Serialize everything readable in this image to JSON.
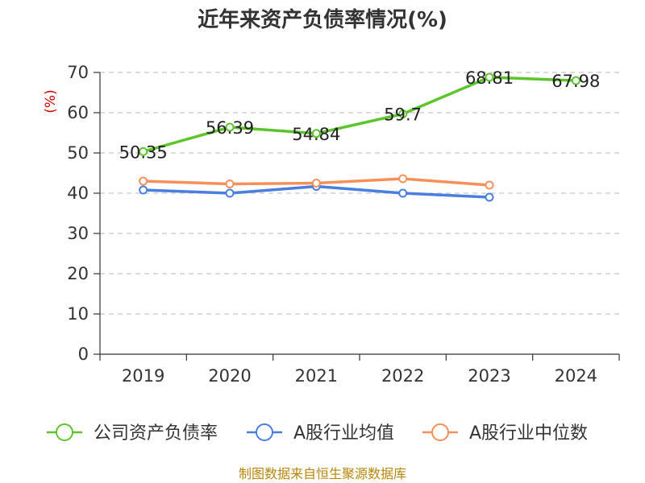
{
  "chart_data": {
    "type": "line",
    "title": "近年来资产负债率情况(%)",
    "ylabel": "(%)",
    "xlabel": "",
    "categories": [
      "2019",
      "2020",
      "2021",
      "2022",
      "2023",
      "2024"
    ],
    "ylim": [
      0,
      70
    ],
    "yticks": [
      0,
      10,
      20,
      30,
      40,
      50,
      60,
      70
    ],
    "grid": true,
    "legend_position": "bottom",
    "series": [
      {
        "name": "公司资产负债率",
        "color": "#5dc52c",
        "values": [
          50.35,
          56.39,
          54.84,
          59.7,
          68.81,
          67.98
        ],
        "data_labels": [
          "50.35",
          "56.39",
          "54.84",
          "59.7",
          "68.81",
          "67.98"
        ]
      },
      {
        "name": "A股行业均值",
        "color": "#4a7fe0",
        "values": [
          40.8,
          40.0,
          41.7,
          40.0,
          39.0,
          null
        ]
      },
      {
        "name": "A股行业中位数",
        "color": "#f5905a",
        "values": [
          43.0,
          42.3,
          42.5,
          43.6,
          42.0,
          null
        ]
      }
    ],
    "source": "制图数据来自恒生聚源数据库"
  }
}
